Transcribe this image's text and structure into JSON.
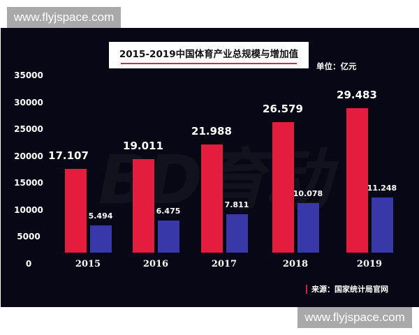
{
  "watermark": {
    "top": "www.flyjspace.com",
    "bottom": "www.flyjspace.com"
  },
  "background_mark": "BD育动",
  "header": {
    "title": "2015-2019中国体育产业总规模与增加值",
    "unit": "单位：亿元"
  },
  "source": "来源：国家统计局官网",
  "colors": {
    "total": "#e41d3e",
    "added_value": "#3838a8",
    "background": "#070716",
    "accent": "#d8263f"
  },
  "y_axis": {
    "ticks": [
      "35000",
      "30000",
      "25000",
      "20000",
      "15000",
      "10000",
      "5000",
      "0"
    ]
  },
  "chart_data": {
    "type": "bar",
    "title": "2015-2019中国体育产业总规模与增加值",
    "xlabel": "",
    "ylabel": "单位：亿元",
    "ylim": [
      0,
      35000
    ],
    "grid": false,
    "legend": null,
    "categories": [
      "2015",
      "2016",
      "2017",
      "2018",
      "2019"
    ],
    "series": [
      {
        "name": "总规模",
        "values": [
          17107,
          19011,
          21988,
          26579,
          29483
        ],
        "labels": [
          "17.107",
          "19.011",
          "21.988",
          "26.579",
          "29.483"
        ]
      },
      {
        "name": "增加值",
        "values": [
          5494,
          6475,
          7811,
          10078,
          11248
        ],
        "labels": [
          "5.494",
          "6.475",
          "7.811",
          "10.078",
          "11.248"
        ]
      }
    ],
    "annotations": [
      "来源：国家统计局官网"
    ]
  }
}
